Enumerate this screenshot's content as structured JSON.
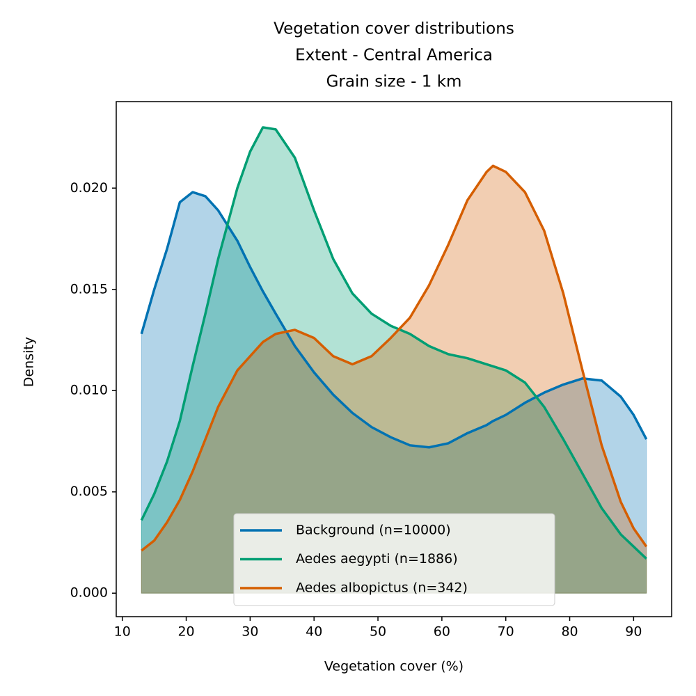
{
  "chart_data": {
    "type": "area",
    "title": [
      "Vegetation cover distributions",
      "Extent - Central America",
      "Grain size - 1 km"
    ],
    "xlabel": "Vegetation cover (%)",
    "ylabel": "Density",
    "x": [
      13,
      15,
      17,
      19,
      21,
      23,
      25,
      28,
      30,
      32,
      34,
      37,
      40,
      43,
      46,
      49,
      52,
      55,
      58,
      61,
      64,
      67,
      68,
      70,
      73,
      76,
      79,
      82,
      85,
      88,
      90,
      92
    ],
    "series": [
      {
        "name": "Background (n=10000)",
        "color": "#0072b2",
        "values": [
          0.0128,
          0.015,
          0.017,
          0.0193,
          0.0198,
          0.0196,
          0.0189,
          0.0174,
          0.0161,
          0.0149,
          0.0138,
          0.0122,
          0.0109,
          0.0098,
          0.0089,
          0.0082,
          0.0077,
          0.0073,
          0.0072,
          0.0074,
          0.0079,
          0.0083,
          0.0085,
          0.0088,
          0.0094,
          0.0099,
          0.0103,
          0.0106,
          0.0105,
          0.0097,
          0.0088,
          0.0076
        ]
      },
      {
        "name": "Aedes aegypti (n=1886)",
        "color": "#009e73",
        "values": [
          0.0036,
          0.0049,
          0.0065,
          0.0085,
          0.0112,
          0.0138,
          0.0165,
          0.02,
          0.0218,
          0.023,
          0.0229,
          0.0215,
          0.0189,
          0.0165,
          0.0148,
          0.0138,
          0.0132,
          0.0128,
          0.0122,
          0.0118,
          0.0116,
          0.0113,
          0.0112,
          0.011,
          0.0104,
          0.0092,
          0.0076,
          0.0059,
          0.0042,
          0.0029,
          0.0023,
          0.0017
        ]
      },
      {
        "name": "Aedes albopictus (n=342)",
        "color": "#d55e00",
        "values": [
          0.0021,
          0.0026,
          0.0035,
          0.0046,
          0.006,
          0.0076,
          0.0092,
          0.011,
          0.0117,
          0.0124,
          0.0128,
          0.013,
          0.0126,
          0.0117,
          0.0113,
          0.0117,
          0.0126,
          0.0136,
          0.0152,
          0.0172,
          0.0194,
          0.0208,
          0.0211,
          0.0208,
          0.0198,
          0.0179,
          0.0148,
          0.011,
          0.0073,
          0.0045,
          0.0032,
          0.0023
        ]
      }
    ],
    "fill_opacity": 0.3,
    "xlim": [
      9.05,
      95.95
    ],
    "ylim": [
      -0.00116,
      0.02427
    ],
    "xticks": [
      10,
      20,
      30,
      40,
      50,
      60,
      70,
      80,
      90
    ],
    "yticks": [
      {
        "value": 0,
        "label": "0.000"
      },
      {
        "value": 0.005,
        "label": "0.005"
      },
      {
        "value": 0.01,
        "label": "0.010"
      },
      {
        "value": 0.015,
        "label": "0.015"
      },
      {
        "value": 0.02,
        "label": "0.020"
      }
    ],
    "legend": "lower center"
  }
}
